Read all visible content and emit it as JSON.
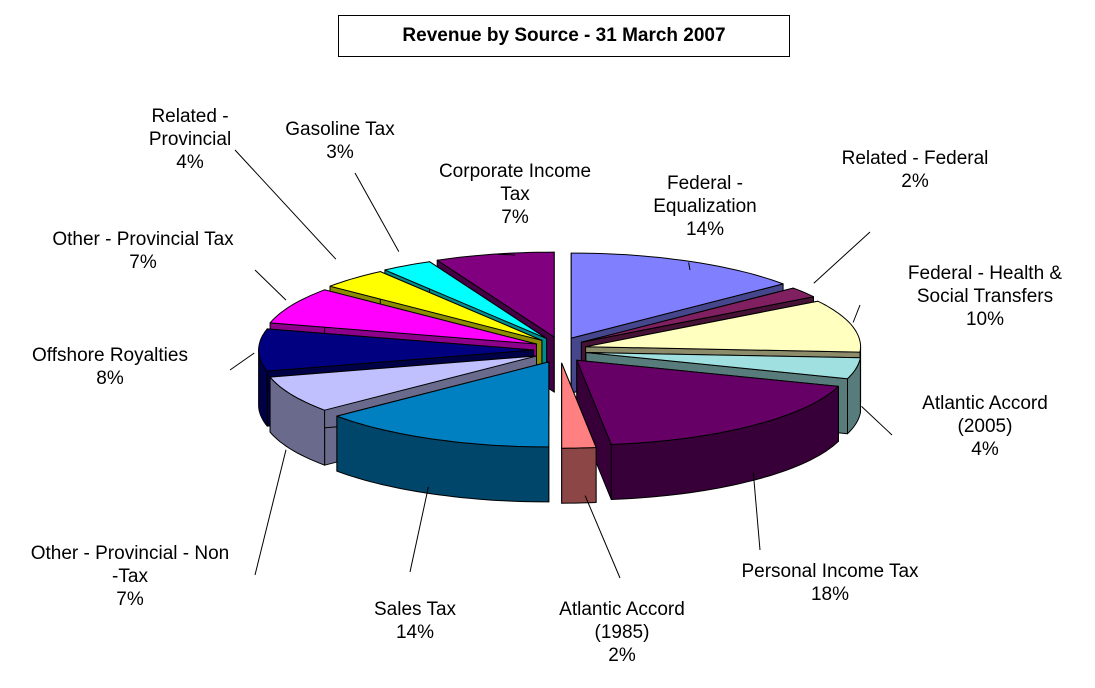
{
  "chart_data": {
    "type": "pie",
    "title": "Revenue by Source - 31 March 2007",
    "categories": [
      "Federal - Equalization",
      "Related - Federal",
      "Federal - Health & Social Transfers",
      "Atlantic Accord (2005)",
      "Personal  Income Tax",
      "Atlantic Accord (1985)",
      "Sales Tax",
      "Other - Provincial - Non -Tax",
      "Offshore Royalties",
      "Other - Provincial Tax",
      "Related - Provincial",
      "Gasoline Tax",
      "Corporate Income Tax"
    ],
    "values": [
      14,
      2,
      10,
      4,
      18,
      2,
      14,
      7,
      8,
      7,
      4,
      3,
      7
    ],
    "value_labels": [
      "14%",
      "2%",
      "10%",
      "4%",
      "18%",
      "2%",
      "14%",
      "7%",
      "8%",
      "7%",
      "4%",
      "3%",
      "7%"
    ],
    "colors": [
      "#8080ff",
      "#802060",
      "#ffffc0",
      "#a0e0e0",
      "#660066",
      "#ff8080",
      "#0080c0",
      "#c0c0ff",
      "#000080",
      "#ff00ff",
      "#ffff00",
      "#00ffff",
      "#800080"
    ]
  }
}
